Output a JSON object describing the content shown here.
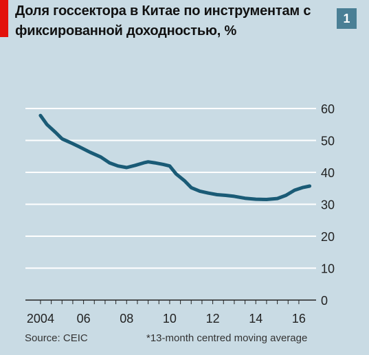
{
  "chart_data": {
    "type": "line",
    "title": "Доля госсектора в Китае по инструментам с фиксированной доходностью, %",
    "chart_number": "1",
    "x_tick_labels": [
      "2004",
      "06",
      "08",
      "10",
      "12",
      "14",
      "16"
    ],
    "x_tick_values": [
      2004,
      2006,
      2008,
      2010,
      2012,
      2014,
      2016
    ],
    "xlim": [
      2003.3,
      2016.8
    ],
    "ylim": [
      0,
      60
    ],
    "y_ticks": [
      0,
      10,
      20,
      30,
      40,
      50,
      60
    ],
    "grid": true,
    "series": [
      {
        "color": "#1a5b76",
        "x": [
          2004.0,
          2004.3,
          2004.7,
          2005.0,
          2005.4,
          2005.8,
          2006.3,
          2006.8,
          2007.2,
          2007.6,
          2008.0,
          2008.4,
          2008.8,
          2009.0,
          2009.3,
          2009.7,
          2010.0,
          2010.3,
          2010.7,
          2011.0,
          2011.4,
          2011.8,
          2012.2,
          2012.6,
          2013.0,
          2013.5,
          2014.0,
          2014.5,
          2015.0,
          2015.4,
          2015.8,
          2016.2,
          2016.5
        ],
        "y": [
          57.8,
          55.0,
          52.5,
          50.5,
          49.3,
          48.0,
          46.3,
          44.8,
          43.0,
          42.0,
          41.5,
          42.2,
          43.0,
          43.3,
          43.0,
          42.5,
          42.0,
          39.5,
          37.3,
          35.2,
          34.1,
          33.5,
          33.0,
          32.8,
          32.5,
          31.9,
          31.6,
          31.5,
          31.8,
          32.8,
          34.4,
          35.3,
          35.7
        ]
      }
    ]
  },
  "footer": {
    "source": "Source: CEIC",
    "note": "*13-month centred moving average"
  },
  "colors": {
    "background": "#c9dbe4",
    "accent": "#e3120b",
    "badge": "#4a7f95",
    "line": "#1a5b76",
    "grid": "#ffffff"
  }
}
